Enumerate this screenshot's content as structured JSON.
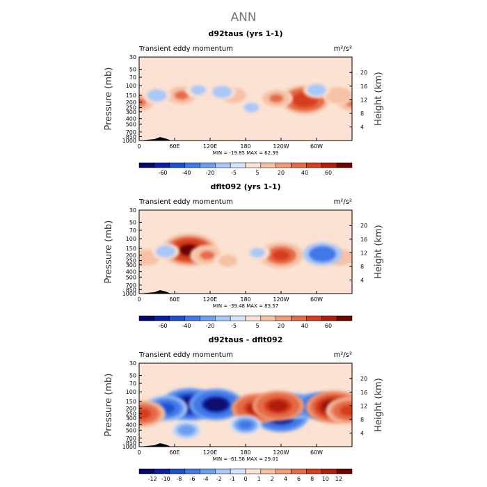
{
  "page": {
    "title": "ANN"
  },
  "chart_data": [
    {
      "type": "heatmap",
      "title": "d92taus (yrs 1-1)",
      "subtitle": "Transient eddy momentum",
      "units": "m²/s²",
      "xlabel": "",
      "ylabel": "Pressure (mb)",
      "y2label": "Height (km)",
      "x_ticks": [
        "0",
        "60E",
        "120E",
        "180",
        "120W",
        "60W"
      ],
      "y_ticks": [
        "30",
        "50",
        "70",
        "100",
        "150",
        "200",
        "250",
        "300",
        "400",
        "500",
        "700",
        "850",
        "1000"
      ],
      "y2_ticks": [
        "4",
        "8",
        "12",
        "16",
        "20"
      ],
      "stats": "MIN = -19.85   MAX =  62.39",
      "colorbar_levels": [
        "-60",
        "-40",
        "-20",
        "-5",
        "5",
        "20",
        "40",
        "60"
      ],
      "colorbar_colors": [
        "#08086b",
        "#0d1fa5",
        "#1f4fd1",
        "#3f78e8",
        "#6d9ef2",
        "#a9c8f7",
        "#d4e4fb",
        "#fbe2d2",
        "#f6c1a5",
        "#f09a76",
        "#e56b47",
        "#d63e1c",
        "#b21e0a",
        "#6e0600"
      ],
      "blobs": [
        {
          "lon": 0,
          "p": 200,
          "value": 25
        },
        {
          "lon": 360,
          "p": 200,
          "value": 25
        },
        {
          "lon": 72,
          "p": 150,
          "value": 25
        },
        {
          "lon": 280,
          "p": 180,
          "value": 55
        },
        {
          "lon": 232,
          "p": 170,
          "value": 22
        },
        {
          "lon": 337,
          "p": 150,
          "value": 20
        },
        {
          "lon": 160,
          "p": 150,
          "value": 15
        },
        {
          "lon": 30,
          "p": 150,
          "value": -12
        },
        {
          "lon": 140,
          "p": 130,
          "value": -12
        },
        {
          "lon": 100,
          "p": 120,
          "value": -8
        },
        {
          "lon": 300,
          "p": 120,
          "value": -10
        },
        {
          "lon": 190,
          "p": 250,
          "value": -8
        }
      ]
    },
    {
      "type": "heatmap",
      "title": "dflt092 (yrs 1-1)",
      "subtitle": "Transient eddy momentum",
      "units": "m²/s²",
      "xlabel": "",
      "ylabel": "Pressure (mb)",
      "y2label": "Height (km)",
      "x_ticks": [
        "0",
        "60E",
        "120E",
        "180",
        "120W",
        "60W"
      ],
      "y_ticks": [
        "30",
        "50",
        "70",
        "100",
        "150",
        "200",
        "250",
        "300",
        "400",
        "500",
        "700",
        "850",
        "1000"
      ],
      "y2_ticks": [
        "4",
        "8",
        "12",
        "16",
        "20"
      ],
      "stats": "MIN = -39.48   MAX =  83.57",
      "colorbar_levels": [
        "-60",
        "-40",
        "-20",
        "-5",
        "5",
        "20",
        "40",
        "60"
      ],
      "colorbar_colors": [
        "#08086b",
        "#0d1fa5",
        "#1f4fd1",
        "#3f78e8",
        "#6d9ef2",
        "#a9c8f7",
        "#d4e4fb",
        "#fbe2d2",
        "#f6c1a5",
        "#f09a76",
        "#e56b47",
        "#d63e1c",
        "#b21e0a",
        "#6e0600"
      ],
      "blobs": [
        {
          "lon": 85,
          "p": 160,
          "value": 70
        },
        {
          "lon": 115,
          "p": 200,
          "value": 25
        },
        {
          "lon": 240,
          "p": 200,
          "value": 45
        },
        {
          "lon": 12,
          "p": 220,
          "value": 20
        },
        {
          "lon": 340,
          "p": 220,
          "value": 18
        },
        {
          "lon": 310,
          "p": 190,
          "value": -35
        },
        {
          "lon": 45,
          "p": 170,
          "value": -12
        },
        {
          "lon": 200,
          "p": 180,
          "value": -8
        },
        {
          "lon": 150,
          "p": 250,
          "value": 10
        }
      ]
    },
    {
      "type": "heatmap",
      "title": "d92taus - dflt092",
      "subtitle": "Transient eddy momentum",
      "units": "m²/s²",
      "xlabel": "",
      "ylabel": "Pressure (mb)",
      "y2label": "Height (km)",
      "x_ticks": [
        "0",
        "60E",
        "120E",
        "180",
        "120W",
        "60W"
      ],
      "y_ticks": [
        "30",
        "50",
        "70",
        "100",
        "150",
        "200",
        "250",
        "300",
        "400",
        "500",
        "700",
        "850",
        "1000"
      ],
      "y2_ticks": [
        "4",
        "8",
        "12",
        "16",
        "20"
      ],
      "stats": "MIN = -61.58   MAX =  29.01",
      "colorbar_levels": [
        "-12",
        "-10",
        "-8",
        "-6",
        "-4",
        "-2",
        "-1",
        "0",
        "1",
        "2",
        "4",
        "6",
        "8",
        "10",
        "12"
      ],
      "colorbar_colors": [
        "#08086b",
        "#0d1fa5",
        "#1f4fd1",
        "#3f78e8",
        "#6d9ef2",
        "#a9c8f7",
        "#d4e4fb",
        "#fbe2d2",
        "#f6c1a5",
        "#f09a76",
        "#e56b47",
        "#d63e1c",
        "#b21e0a",
        "#6e0600"
      ],
      "blobs": [
        {
          "lon": 85,
          "p": 170,
          "value": -14
        },
        {
          "lon": 130,
          "p": 170,
          "value": -13
        },
        {
          "lon": 45,
          "p": 200,
          "value": -9
        },
        {
          "lon": 240,
          "p": 280,
          "value": -13
        },
        {
          "lon": 265,
          "p": 180,
          "value": -9
        },
        {
          "lon": 305,
          "p": 180,
          "value": -10
        },
        {
          "lon": 200,
          "p": 200,
          "value": 12
        },
        {
          "lon": 235,
          "p": 180,
          "value": 12
        },
        {
          "lon": 330,
          "p": 190,
          "value": 14
        },
        {
          "lon": 5,
          "p": 250,
          "value": 10
        },
        {
          "lon": 355,
          "p": 220,
          "value": 10
        },
        {
          "lon": 180,
          "p": 400,
          "value": -4
        },
        {
          "lon": 80,
          "p": 500,
          "value": -3
        }
      ]
    }
  ]
}
